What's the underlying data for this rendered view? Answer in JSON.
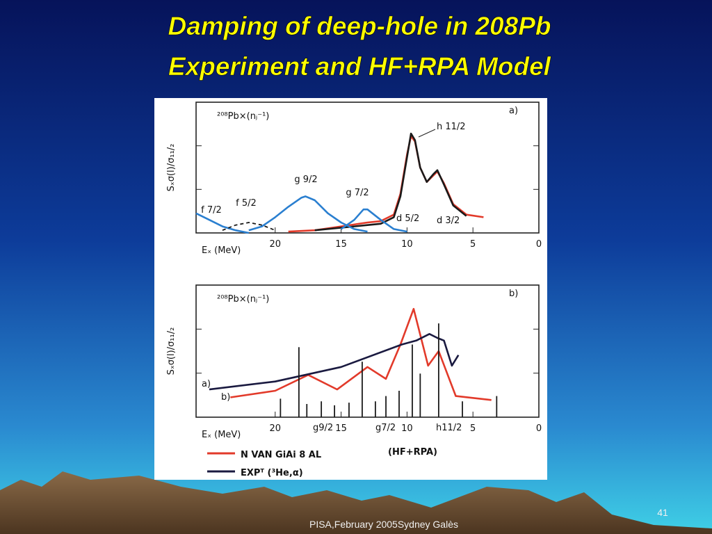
{
  "slide": {
    "title": [
      "Damping of deep-hole in 208Pb",
      "Experiment and HF+RPA Model"
    ],
    "footer": "PISA,February 2005Sydney Galès",
    "page_number": "41"
  },
  "chart_data": [
    {
      "type": "line",
      "panel_label": "a)",
      "subtitle": "²⁰⁸Pb×(nⱼ⁻¹)",
      "xlabel": "Eₓ (MeV)",
      "ylabel": "Sₓσ(l)/σ₁₁/₂",
      "xlim": [
        26,
        0
      ],
      "xticks": [
        20,
        15,
        10,
        5,
        0
      ],
      "ylim": [
        0,
        100
      ],
      "annotations": [
        "h 11/2",
        "d 5/2",
        "d 3/2"
      ],
      "series": [
        {
          "color": "#e23a2a",
          "kind": "line",
          "x": [
            19,
            17,
            15,
            13,
            12,
            11,
            10.5,
            10,
            9.7,
            9.4,
            9,
            8.5,
            8,
            7.7,
            7.2,
            6.5,
            5.5,
            4.2
          ],
          "values": [
            1,
            2,
            5,
            8,
            9,
            14,
            30,
            60,
            74,
            70,
            50,
            39,
            44,
            47,
            38,
            22,
            14,
            12
          ]
        },
        {
          "color": "#1a1a1a",
          "kind": "line",
          "x": [
            17,
            15,
            13,
            12,
            11,
            10.5,
            10,
            9.7,
            9.4,
            9,
            8.5,
            8,
            7.7,
            7.2,
            6.5,
            5.5
          ],
          "values": [
            2,
            4,
            6,
            7,
            12,
            28,
            58,
            76,
            71,
            50,
            39,
            45,
            48,
            37,
            21,
            13
          ]
        },
        {
          "name": "g 9/2",
          "color": "#2a7fd0",
          "kind": "line",
          "x": [
            22,
            21,
            20,
            19,
            18,
            17.7,
            17,
            16,
            15,
            14,
            13
          ],
          "values": [
            2,
            5,
            12,
            20,
            27,
            28,
            25,
            15,
            8,
            3,
            1
          ]
        },
        {
          "name": "g 7/2",
          "color": "#2a7fd0",
          "kind": "line",
          "x": [
            15,
            14,
            13.3,
            13,
            12,
            11,
            10
          ],
          "values": [
            3,
            10,
            18,
            18,
            10,
            3,
            1
          ]
        },
        {
          "name": "f 7/2",
          "color": "#2a7fd0",
          "kind": "line",
          "x": [
            26,
            25,
            24,
            23,
            22
          ],
          "values": [
            15,
            10,
            5,
            2,
            0
          ]
        },
        {
          "name": "f 5/2",
          "color": "#1a1a1a",
          "kind": "dashed",
          "x": [
            24,
            23,
            22,
            21,
            20
          ],
          "values": [
            2,
            6,
            8,
            6,
            2
          ]
        }
      ]
    },
    {
      "type": "line",
      "panel_label": "b)",
      "subtitle": "²⁰⁸Pb×(nⱼ⁻¹)",
      "xlabel": "Eₓ (MeV)",
      "ylabel": "Sₓσ(l)/σ₁₁/₂",
      "xlim": [
        26,
        0
      ],
      "xticks": [
        20,
        15,
        10,
        5,
        0
      ],
      "ylim": [
        0,
        100
      ],
      "legend": true,
      "legend_note": "(HF+RPA)",
      "annotations": [
        "a)",
        "b)",
        "g9/2",
        "g7/2",
        "h11/2"
      ],
      "series": [
        {
          "name": "N VAN GiAi 8 AL",
          "color": "#e23a2a",
          "kind": "line",
          "x": [
            23.4,
            20,
            17.5,
            15.3,
            13,
            11.6,
            10.5,
            9.5,
            8.4,
            7.6,
            6.3,
            3.6
          ],
          "values": [
            15,
            20,
            32,
            21,
            38,
            29,
            55,
            82,
            39,
            50,
            16,
            13
          ]
        },
        {
          "name": "EXPᵀ (³He,α)",
          "color": "#1a1a40",
          "kind": "line",
          "x": [
            25,
            20,
            15,
            10.4,
            9.3,
            8.3,
            7.7,
            7.2,
            6.6,
            6.1
          ],
          "values": [
            21,
            27,
            38,
            55,
            58,
            63,
            60,
            58,
            39,
            47
          ]
        },
        {
          "color": "#1a1a1a",
          "kind": "stick",
          "x": [
            19.6,
            18.2,
            17.6,
            16.5,
            15.5,
            14.4,
            13.4,
            12.4,
            11.6,
            10.6,
            9.6,
            9,
            7.6,
            5.8,
            3.2
          ],
          "values": [
            14,
            53,
            10,
            12,
            9,
            11,
            42,
            12,
            16,
            20,
            55,
            33,
            71,
            12,
            16
          ]
        }
      ]
    }
  ]
}
